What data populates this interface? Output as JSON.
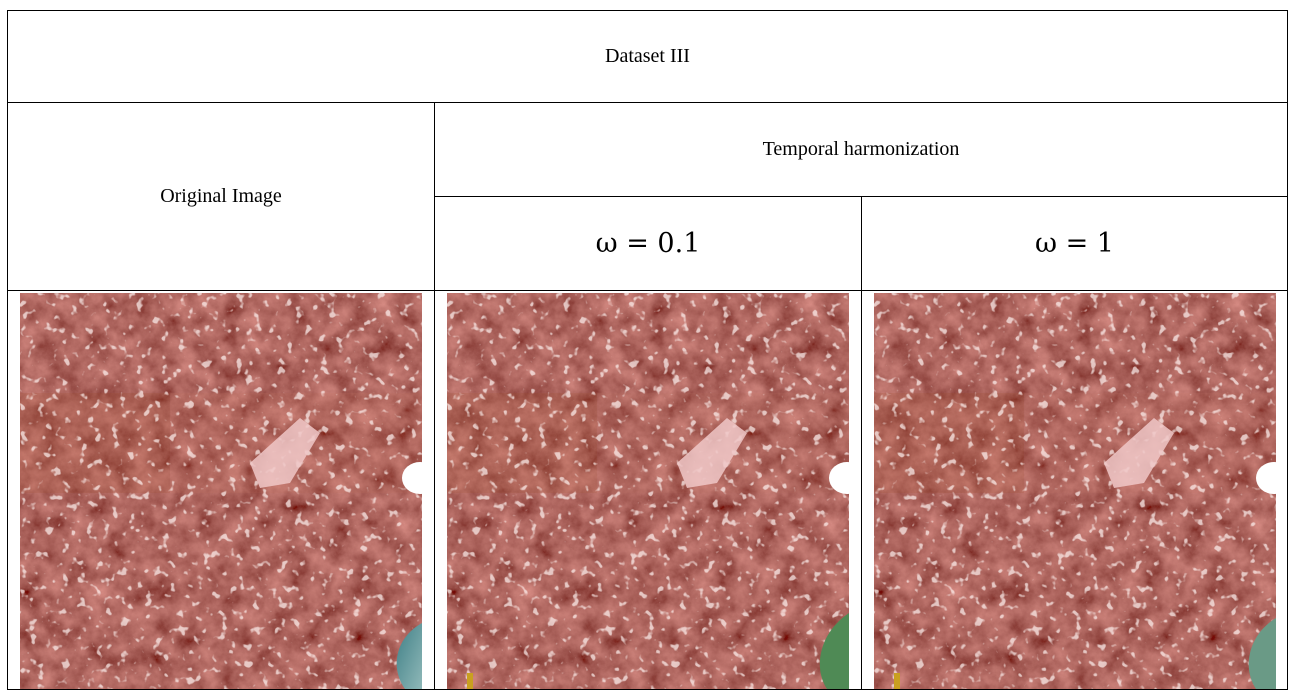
{
  "header": {
    "title": "Dataset III"
  },
  "columns": {
    "original": "Original Image",
    "group": "Temporal harmonization",
    "sub": [
      "ω = 0.1",
      "ω = 1"
    ]
  }
}
